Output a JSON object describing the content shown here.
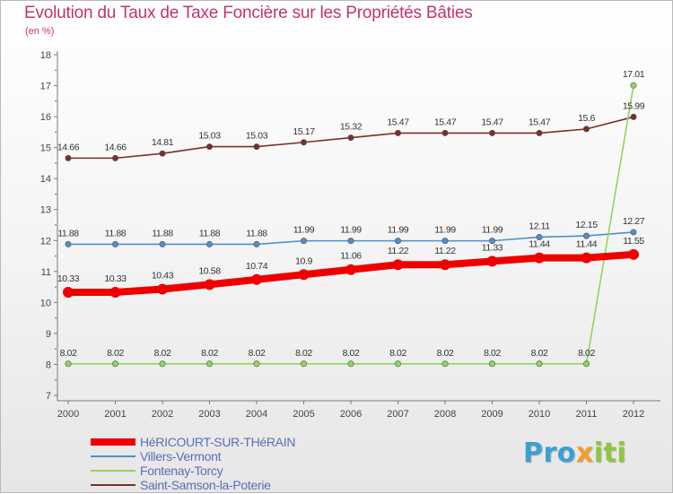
{
  "chart_data": {
    "type": "line",
    "title": "Evolution du Taux de Taxe Foncière sur les Propriétés Bâties",
    "subtitle": "(en %)",
    "x": [
      "2000",
      "2001",
      "2002",
      "2003",
      "2004",
      "2005",
      "2006",
      "2007",
      "2008",
      "2009",
      "2010",
      "2011",
      "2012"
    ],
    "ylim": [
      7,
      18
    ],
    "yticks": [
      "7",
      "8",
      "9",
      "10",
      "11",
      "12",
      "13",
      "14",
      "15",
      "16",
      "17",
      "18"
    ],
    "grid": false,
    "series": [
      {
        "name": "HéRICOURT-SUR-THéRAIN",
        "color": "#ee0000",
        "values": [
          10.33,
          10.33,
          10.43,
          10.58,
          10.74,
          10.9,
          11.06,
          11.22,
          11.22,
          11.33,
          11.44,
          11.44,
          11.55
        ],
        "labels": [
          "10.33",
          "10.33",
          "10.43",
          "10.58",
          "10.74",
          "10.9",
          "11.06",
          "11.22",
          "11.22",
          "11.33",
          "11.44",
          "11.44",
          "11.55"
        ]
      },
      {
        "name": "Villers-Vermont",
        "color": "#4f8fc9",
        "values": [
          11.88,
          11.88,
          11.88,
          11.88,
          11.88,
          11.99,
          11.99,
          11.99,
          11.99,
          11.99,
          12.11,
          12.15,
          12.27
        ],
        "labels": [
          "11.88",
          "11.88",
          "11.88",
          "11.88",
          "11.88",
          "11.99",
          "11.99",
          "11.99",
          "11.99",
          "11.99",
          "12.11",
          "12.15",
          "12.27"
        ]
      },
      {
        "name": "Fontenay-Torcy",
        "color": "#8fd65a",
        "values": [
          8.02,
          8.02,
          8.02,
          8.02,
          8.02,
          8.02,
          8.02,
          8.02,
          8.02,
          8.02,
          8.02,
          8.02,
          17.01
        ],
        "labels": [
          "8.02",
          "8.02",
          "8.02",
          "8.02",
          "8.02",
          "8.02",
          "8.02",
          "8.02",
          "8.02",
          "8.02",
          "8.02",
          "8.02",
          "17.01"
        ]
      },
      {
        "name": "Saint-Samson-la-Poterie",
        "color": "#7a2e2e",
        "values": [
          14.66,
          14.66,
          14.81,
          15.03,
          15.03,
          15.17,
          15.32,
          15.47,
          15.47,
          15.47,
          15.47,
          15.6,
          15.99
        ],
        "labels": [
          "14.66",
          "14.66",
          "14.81",
          "15.03",
          "15.03",
          "15.17",
          "15.32",
          "15.47",
          "15.47",
          "15.47",
          "15.47",
          "15.6",
          "15.99"
        ]
      }
    ]
  },
  "logo": {
    "p": "Pro",
    "x": "x",
    "i": "iti"
  }
}
